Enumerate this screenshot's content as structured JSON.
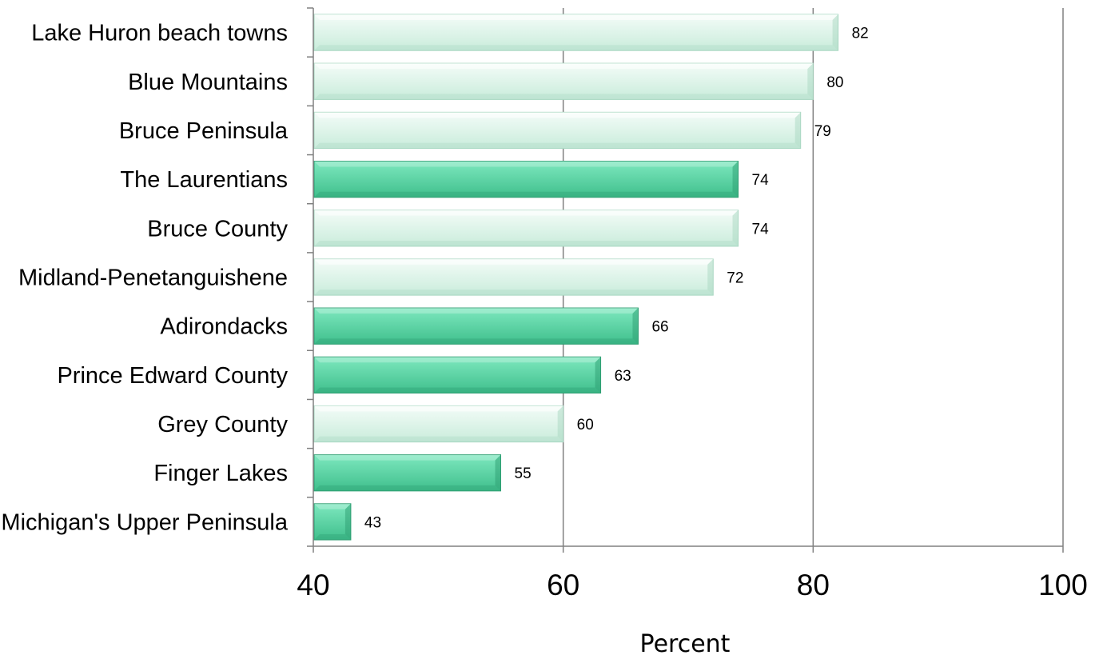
{
  "chart_data": {
    "type": "bar",
    "orientation": "horizontal",
    "title": "",
    "xlabel": "Percent",
    "ylabel": "",
    "xlim": [
      40,
      100
    ],
    "x_ticks": [
      40,
      60,
      80,
      100
    ],
    "grid": "vertical major gridlines",
    "legend": "none",
    "categories": [
      "Lake Huron beach towns",
      "Blue Mountains",
      "Bruce Peninsula",
      "The Laurentians",
      "Bruce County",
      "Midland-Penetanguishene",
      "Adirondacks",
      "Prince Edward County",
      "Grey County",
      "Finger Lakes",
      "Michigan's Upper Peninsula"
    ],
    "values": [
      82,
      80,
      79,
      74,
      74,
      72,
      66,
      63,
      60,
      55,
      43
    ],
    "value_labels": [
      "82",
      "80",
      "79",
      "74",
      "74",
      "72",
      "66",
      "63",
      "60",
      "55",
      "43"
    ],
    "bar_fill": [
      "light",
      "light",
      "light",
      "dark",
      "light",
      "light",
      "dark",
      "dark",
      "light",
      "dark",
      "dark"
    ],
    "colors": {
      "light_top": "#f4fcf8",
      "light_bottom": "#c9ecdb",
      "light_edge": "#a9d8c2",
      "dark_top": "#7ee8bf",
      "dark_bottom": "#3fbf8c",
      "dark_edge": "#2e9e72",
      "axis": "#808080",
      "grid": "#808080"
    }
  }
}
